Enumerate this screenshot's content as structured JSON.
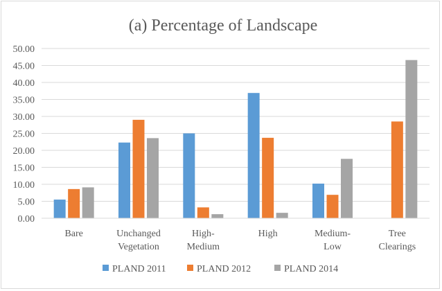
{
  "chart_data": {
    "type": "bar",
    "title": "(a) Percentage of Landscape",
    "categories": [
      [
        "Bare"
      ],
      [
        "Unchanged",
        "Vegetation"
      ],
      [
        "High-",
        "Medium"
      ],
      [
        "High"
      ],
      [
        "Medium-",
        "Low"
      ],
      [
        "Tree",
        "Clearings"
      ]
    ],
    "series": [
      {
        "name": "PLAND 2011",
        "color": "#5b9bd5",
        "values": [
          5.5,
          22.3,
          25.0,
          36.9,
          10.2,
          0
        ]
      },
      {
        "name": "PLAND 2012",
        "color": "#ed7d31",
        "values": [
          8.6,
          29.0,
          3.2,
          23.7,
          6.9,
          28.5
        ]
      },
      {
        "name": "PLAND  2014",
        "color": "#a5a5a5",
        "values": [
          9.1,
          23.6,
          1.2,
          1.6,
          17.5,
          46.6
        ]
      }
    ],
    "ylim": [
      0,
      50
    ],
    "yticks": [
      "0.00",
      "5.00",
      "10.00",
      "15.00",
      "20.00",
      "25.00",
      "30.00",
      "35.00",
      "40.00",
      "45.00",
      "50.00"
    ],
    "grid": true,
    "legend": "bottom"
  }
}
